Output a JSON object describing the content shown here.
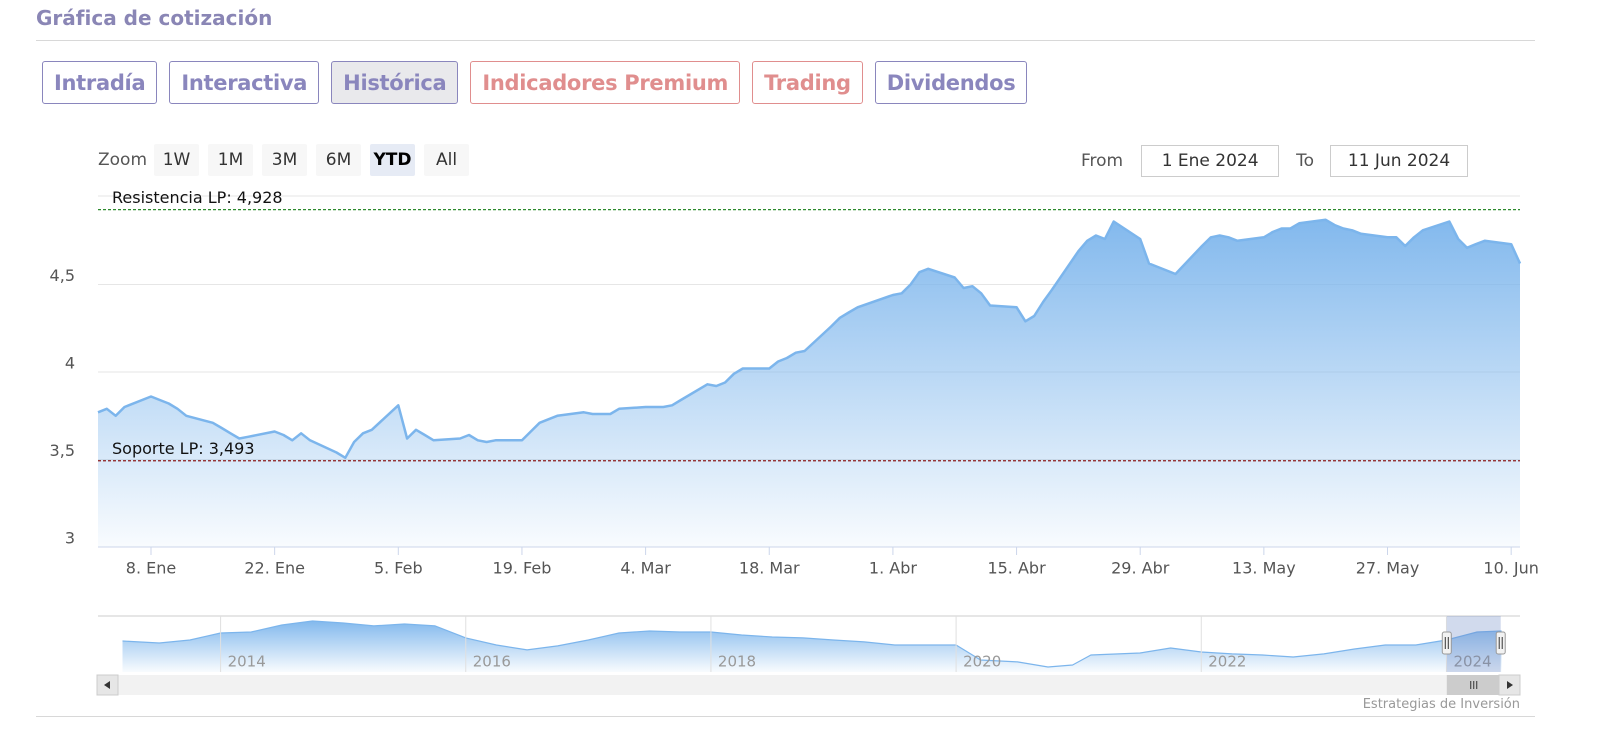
{
  "header": {
    "title": "Gráfica de cotización"
  },
  "tabs": [
    {
      "label": "Intradía",
      "color": "#8a86bd"
    },
    {
      "label": "Interactiva",
      "color": "#8a86bd"
    },
    {
      "label": "Histórica",
      "color": "#8a86bd"
    },
    {
      "label": "Indicadores Premium",
      "color": "#e08e8e"
    },
    {
      "label": "Trading",
      "color": "#e08e8e"
    },
    {
      "label": "Dividendos",
      "color": "#8a86bd"
    }
  ],
  "active_tab": 2,
  "zoom": {
    "label": "Zoom",
    "buttons": [
      "1W",
      "1M",
      "3M",
      "6M",
      "YTD",
      "All"
    ],
    "active": 4
  },
  "range": {
    "from_label": "From",
    "from": "1 Ene 2024",
    "to_label": "To",
    "to": "11 Jun 2024"
  },
  "credit": "Estrategias de Inversión",
  "chart_data": [
    {
      "type": "area",
      "color": "#7cb5ec",
      "grid": true,
      "x": [
        "2024-01-02",
        "2024-01-03",
        "2024-01-04",
        "2024-01-05",
        "2024-01-08",
        "2024-01-09",
        "2024-01-10",
        "2024-01-11",
        "2024-01-12",
        "2024-01-15",
        "2024-01-16",
        "2024-01-17",
        "2024-01-18",
        "2024-01-19",
        "2024-01-22",
        "2024-01-23",
        "2024-01-24",
        "2024-01-25",
        "2024-01-26",
        "2024-01-29",
        "2024-01-30",
        "2024-01-31",
        "2024-02-01",
        "2024-02-02",
        "2024-02-05",
        "2024-02-06",
        "2024-02-07",
        "2024-02-08",
        "2024-02-09",
        "2024-02-12",
        "2024-02-13",
        "2024-02-14",
        "2024-02-15",
        "2024-02-16",
        "2024-02-19",
        "2024-02-20",
        "2024-02-21",
        "2024-02-22",
        "2024-02-23",
        "2024-02-26",
        "2024-02-27",
        "2024-02-28",
        "2024-02-29",
        "2024-03-01",
        "2024-03-04",
        "2024-03-05",
        "2024-03-06",
        "2024-03-07",
        "2024-03-08",
        "2024-03-11",
        "2024-03-12",
        "2024-03-13",
        "2024-03-14",
        "2024-03-15",
        "2024-03-18",
        "2024-03-19",
        "2024-03-20",
        "2024-03-21",
        "2024-03-22",
        "2024-03-25",
        "2024-03-26",
        "2024-03-27",
        "2024-03-28",
        "2024-04-01",
        "2024-04-02",
        "2024-04-03",
        "2024-04-04",
        "2024-04-05",
        "2024-04-08",
        "2024-04-09",
        "2024-04-10",
        "2024-04-11",
        "2024-04-12",
        "2024-04-15",
        "2024-04-16",
        "2024-04-17",
        "2024-04-18",
        "2024-04-19",
        "2024-04-22",
        "2024-04-23",
        "2024-04-24",
        "2024-04-25",
        "2024-04-26",
        "2024-04-29",
        "2024-04-30",
        "2024-05-02",
        "2024-05-03",
        "2024-05-06",
        "2024-05-07",
        "2024-05-08",
        "2024-05-09",
        "2024-05-10",
        "2024-05-13",
        "2024-05-14",
        "2024-05-15",
        "2024-05-16",
        "2024-05-17",
        "2024-05-20",
        "2024-05-21",
        "2024-05-22",
        "2024-05-23",
        "2024-05-24",
        "2024-05-27",
        "2024-05-28",
        "2024-05-29",
        "2024-05-30",
        "2024-05-31",
        "2024-06-03",
        "2024-06-04",
        "2024-06-05",
        "2024-06-06",
        "2024-06-07",
        "2024-06-10",
        "2024-06-11"
      ],
      "values": [
        3.77,
        3.79,
        3.75,
        3.8,
        3.86,
        3.84,
        3.82,
        3.79,
        3.75,
        3.71,
        3.68,
        3.65,
        3.62,
        3.63,
        3.66,
        3.64,
        3.61,
        3.65,
        3.61,
        3.54,
        3.51,
        3.6,
        3.65,
        3.67,
        3.81,
        3.62,
        3.67,
        3.64,
        3.61,
        3.62,
        3.64,
        3.61,
        3.6,
        3.61,
        3.61,
        3.66,
        3.71,
        3.73,
        3.75,
        3.77,
        3.76,
        3.76,
        3.76,
        3.79,
        3.8,
        3.8,
        3.8,
        3.81,
        3.84,
        3.93,
        3.92,
        3.94,
        3.99,
        4.02,
        4.02,
        4.06,
        4.08,
        4.11,
        4.12,
        4.26,
        4.31,
        4.34,
        4.37,
        4.44,
        4.45,
        4.5,
        4.57,
        4.59,
        4.54,
        4.48,
        4.49,
        4.45,
        4.38,
        4.37,
        4.29,
        4.32,
        4.4,
        4.47,
        4.69,
        4.75,
        4.78,
        4.76,
        4.86,
        4.76,
        4.62,
        4.58,
        4.56,
        4.72,
        4.77,
        4.78,
        4.77,
        4.75,
        4.77,
        4.8,
        4.82,
        4.82,
        4.85,
        4.87,
        4.84,
        4.82,
        4.81,
        4.79,
        4.77,
        4.77,
        4.72,
        4.77,
        4.81,
        4.86,
        4.76,
        4.71,
        4.73,
        4.75,
        4.73,
        4.62
      ],
      "xlim": [
        "2024-01-02",
        "2024-06-11"
      ],
      "xticks": [
        {
          "value": "2024-01-08",
          "label": "8. Ene"
        },
        {
          "value": "2024-01-22",
          "label": "22. Ene"
        },
        {
          "value": "2024-02-05",
          "label": "5. Feb"
        },
        {
          "value": "2024-02-19",
          "label": "19. Feb"
        },
        {
          "value": "2024-03-04",
          "label": "4. Mar"
        },
        {
          "value": "2024-03-18",
          "label": "18. Mar"
        },
        {
          "value": "2024-04-01",
          "label": "1. Abr"
        },
        {
          "value": "2024-04-15",
          "label": "15. Abr"
        },
        {
          "value": "2024-04-29",
          "label": "29. Abr"
        },
        {
          "value": "2024-05-13",
          "label": "13. May"
        },
        {
          "value": "2024-05-27",
          "label": "27. May"
        },
        {
          "value": "2024-06-10",
          "label": "10. Jun"
        }
      ],
      "ylim": [
        3,
        5
      ],
      "yticks": [
        3,
        {
          "value": 3.5,
          "label": "3,5"
        },
        4,
        {
          "value": 4.5,
          "label": "4,5"
        }
      ],
      "annotations": [
        {
          "label": "Resistencia LP: 4,928",
          "value": 4.928,
          "color": "#2e8b2e"
        },
        {
          "label": "Soporte LP: 3,493",
          "value": 3.493,
          "color": "#8b1a1a"
        }
      ]
    },
    {
      "type": "area",
      "color": "#7cb5ec",
      "grid": true,
      "x": [
        2013.2,
        2013.5,
        2013.75,
        2014,
        2014.25,
        2014.5,
        2014.75,
        2015,
        2015.25,
        2015.5,
        2015.75,
        2016,
        2016.25,
        2016.5,
        2016.75,
        2017,
        2017.25,
        2017.5,
        2017.75,
        2018,
        2018.25,
        2018.5,
        2018.75,
        2019,
        2019.25,
        2019.5,
        2019.75,
        2020,
        2020.2,
        2020.5,
        2020.75,
        2020.95,
        2021.1,
        2021.5,
        2021.75,
        2022,
        2022.25,
        2022.5,
        2022.75,
        2023,
        2023.25,
        2023.5,
        2023.75,
        2024,
        2024.25,
        2024.45
      ],
      "values": [
        3.94,
        3.81,
        4.0,
        4.44,
        4.5,
        4.94,
        5.19,
        5.06,
        4.88,
        5.0,
        4.88,
        4.13,
        3.69,
        3.38,
        3.63,
        4.0,
        4.44,
        4.56,
        4.5,
        4.5,
        4.31,
        4.19,
        4.13,
        4.0,
        3.88,
        3.69,
        3.69,
        3.69,
        2.75,
        2.63,
        2.31,
        2.44,
        3.06,
        3.19,
        3.5,
        3.25,
        3.13,
        3.06,
        2.94,
        3.13,
        3.44,
        3.69,
        3.69,
        4.0,
        4.5,
        4.56
      ],
      "xlim": [
        2013,
        2024.6
      ],
      "xticks": [
        2014,
        2016,
        2018,
        2020,
        2022,
        2024
      ],
      "ylim": [
        2,
        5.5
      ]
    }
  ]
}
